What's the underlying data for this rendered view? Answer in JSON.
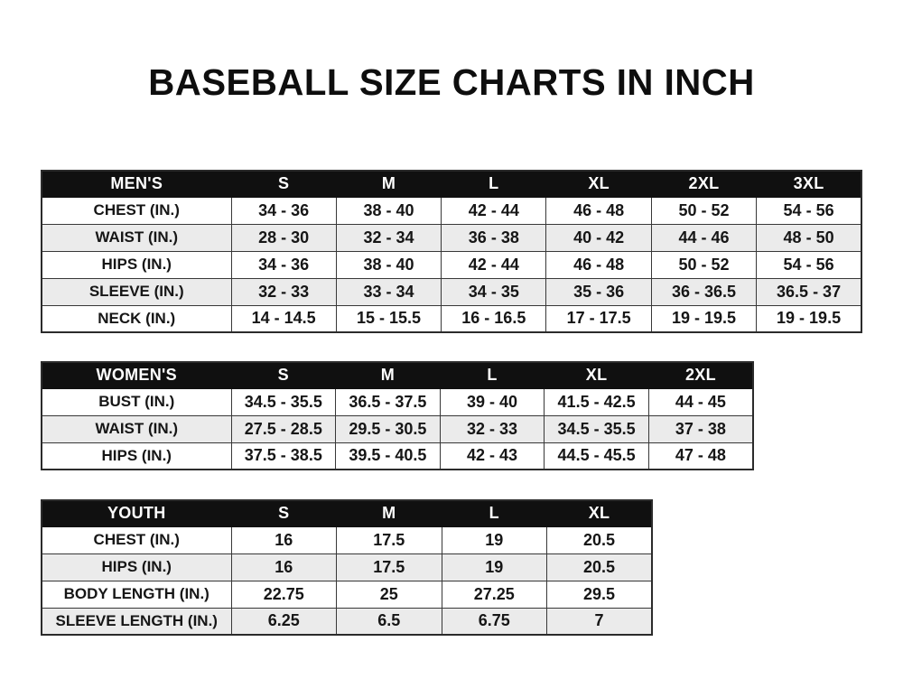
{
  "page": {
    "title": "BASEBALL SIZE CHARTS IN INCH"
  },
  "colors": {
    "header_bg": "#101010",
    "header_text": "#ffffff",
    "row_alt_bg": "#ebebeb",
    "border": "#383838",
    "text": "#161616",
    "page_bg": "#ffffff"
  },
  "tables": [
    {
      "id": "mens",
      "header": [
        "MEN'S",
        "S",
        "M",
        "L",
        "XL",
        "2XL",
        "3XL"
      ],
      "rows": [
        [
          "CHEST (IN.)",
          "34 - 36",
          "38 - 40",
          "42 - 44",
          "46 - 48",
          "50 - 52",
          "54 - 56"
        ],
        [
          "WAIST (IN.)",
          "28 - 30",
          "32 - 34",
          "36 - 38",
          "40 - 42",
          "44 - 46",
          "48 - 50"
        ],
        [
          "HIPS (IN.)",
          "34 - 36",
          "38 - 40",
          "42 - 44",
          "46 - 48",
          "50 - 52",
          "54 - 56"
        ],
        [
          "SLEEVE (IN.)",
          "32 - 33",
          "33 - 34",
          "34 - 35",
          "35 - 36",
          "36 - 36.5",
          "36.5 - 37"
        ],
        [
          "NECK (IN.)",
          "14 - 14.5",
          "15 - 15.5",
          "16 - 16.5",
          "17 - 17.5",
          "19 - 19.5",
          "19 - 19.5"
        ]
      ]
    },
    {
      "id": "womens",
      "header": [
        "WOMEN'S",
        "S",
        "M",
        "L",
        "XL",
        "2XL"
      ],
      "rows": [
        [
          "BUST (IN.)",
          "34.5 - 35.5",
          "36.5 - 37.5",
          "39 - 40",
          "41.5 - 42.5",
          "44 - 45"
        ],
        [
          "WAIST (IN.)",
          "27.5 - 28.5",
          "29.5 - 30.5",
          "32 - 33",
          "34.5 - 35.5",
          "37 - 38"
        ],
        [
          "HIPS (IN.)",
          "37.5 - 38.5",
          "39.5 - 40.5",
          "42 - 43",
          "44.5 - 45.5",
          "47 - 48"
        ]
      ]
    },
    {
      "id": "youth",
      "header": [
        "YOUTH",
        "S",
        "M",
        "L",
        "XL"
      ],
      "rows": [
        [
          "CHEST (IN.)",
          "16",
          "17.5",
          "19",
          "20.5"
        ],
        [
          "HIPS (IN.)",
          "16",
          "17.5",
          "19",
          "20.5"
        ],
        [
          "BODY LENGTH (IN.)",
          "22.75",
          "25",
          "27.25",
          "29.5"
        ],
        [
          "SLEEVE LENGTH (IN.)",
          "6.25",
          "6.5",
          "6.75",
          "7"
        ]
      ]
    }
  ]
}
